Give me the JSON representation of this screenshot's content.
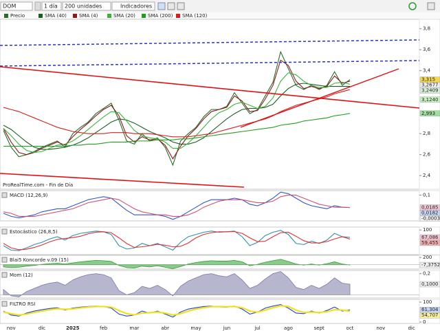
{
  "toolbar": {
    "symbol": "DOM",
    "period": "1 día",
    "units": "200 unidades",
    "indicators": "Indicadores"
  },
  "chart_data": [
    {
      "type": "line",
      "source": "ProRealTime.com - Fin de Día",
      "categories": [
        null,
        "nov",
        null,
        null,
        null,
        "dic",
        null,
        null,
        null,
        "2025",
        null,
        null,
        null,
        "feb",
        null,
        null,
        null,
        "mar",
        null,
        null,
        null,
        "abr",
        null,
        null,
        null,
        "may",
        null,
        null,
        null,
        "jun",
        null,
        null,
        null,
        "jul",
        null,
        null,
        null,
        "ago",
        null,
        null,
        null,
        "sept",
        null,
        null,
        null,
        "oct",
        null,
        null,
        null,
        "nov",
        null,
        null,
        null,
        "dic"
      ],
      "ylim": [
        2.27,
        3.89
      ],
      "yticks": [
        {
          "value": 3.8,
          "label": "3,8"
        },
        {
          "value": 3.6,
          "label": "3,6"
        },
        {
          "value": 3.4,
          "label": "3,4"
        },
        {
          "value": 2.8,
          "label": "2,8"
        },
        {
          "value": 2.6,
          "label": "2,6"
        },
        {
          "value": 2.4,
          "label": "2,4"
        }
      ],
      "series": [
        {
          "name": "Precio",
          "color": "#2a6a2a",
          "values": [
            2.83,
            2.67,
            2.58,
            2.6,
            2.63,
            2.67,
            2.7,
            2.73,
            2.67,
            2.8,
            2.86,
            2.91,
            2.99,
            3.04,
            3.09,
            2.93,
            2.73,
            2.7,
            2.8,
            2.73,
            2.76,
            2.67,
            2.5,
            2.73,
            2.8,
            2.86,
            2.96,
            3.03,
            3.03,
            3.06,
            3.19,
            3.09,
            2.99,
            3.03,
            3.16,
            3.29,
            3.58,
            3.42,
            3.26,
            3.22,
            3.26,
            3.22,
            3.26,
            3.39,
            3.26,
            3.315,
            null,
            null,
            null,
            null,
            null,
            null,
            null,
            null
          ]
        },
        {
          "name": "SMA (40)",
          "color": "#1b5e20",
          "values": [
            2.88,
            2.84,
            2.78,
            2.72,
            2.67,
            2.65,
            2.65,
            2.66,
            2.67,
            2.69,
            2.72,
            2.76,
            2.81,
            2.86,
            2.91,
            2.94,
            2.93,
            2.9,
            2.86,
            2.82,
            2.79,
            2.76,
            2.72,
            2.7,
            2.7,
            2.72,
            2.76,
            2.82,
            2.88,
            2.94,
            2.99,
            3.03,
            3.04,
            3.04,
            3.05,
            3.08,
            3.16,
            3.23,
            3.27,
            3.28,
            3.27,
            3.26,
            3.25,
            3.25,
            3.25,
            3.25,
            null,
            null,
            null,
            null,
            null,
            null,
            null,
            null
          ]
        },
        {
          "name": "SMA (4)",
          "color": "#8b1a1a",
          "values": [
            2.85,
            2.72,
            2.62,
            2.6,
            2.62,
            2.66,
            2.69,
            2.72,
            2.69,
            2.77,
            2.84,
            2.9,
            2.97,
            3.03,
            3.07,
            2.97,
            2.78,
            2.72,
            2.77,
            2.74,
            2.75,
            2.69,
            2.56,
            2.68,
            2.78,
            2.85,
            2.94,
            3.01,
            3.03,
            3.05,
            3.16,
            3.11,
            3.01,
            3.02,
            3.13,
            3.26,
            3.5,
            3.45,
            3.3,
            3.23,
            3.25,
            3.23,
            3.25,
            3.35,
            3.28,
            3.3,
            null,
            null,
            null,
            null,
            null,
            null,
            null,
            null
          ]
        },
        {
          "name": "SMA (20)",
          "color": "#3bb33b",
          "values": [
            2.85,
            2.78,
            2.7,
            2.64,
            2.62,
            2.63,
            2.66,
            2.69,
            2.7,
            2.73,
            2.78,
            2.84,
            2.9,
            2.96,
            3.01,
            3,
            2.92,
            2.83,
            2.78,
            2.76,
            2.75,
            2.72,
            2.66,
            2.66,
            2.71,
            2.78,
            2.86,
            2.94,
            3,
            3.03,
            3.08,
            3.1,
            3.07,
            3.04,
            3.06,
            3.14,
            3.3,
            3.38,
            3.36,
            3.3,
            3.26,
            3.24,
            3.24,
            3.28,
            3.29,
            3.27,
            null,
            null,
            null,
            null,
            null,
            null,
            null,
            null
          ]
        },
        {
          "name": "SMA (200)",
          "color": "#1e9e1e",
          "values": [
            2.68,
            2.68,
            2.68,
            2.68,
            2.68,
            2.68,
            2.68,
            2.68,
            2.68,
            2.69,
            2.69,
            2.7,
            2.7,
            2.71,
            2.72,
            2.72,
            2.72,
            2.73,
            2.73,
            2.73,
            2.74,
            2.74,
            2.74,
            2.75,
            2.75,
            2.76,
            2.77,
            2.78,
            2.79,
            2.8,
            2.81,
            2.82,
            2.83,
            2.84,
            2.85,
            2.86,
            2.88,
            2.89,
            2.9,
            2.92,
            2.93,
            2.94,
            2.95,
            2.97,
            2.98,
            2.993,
            null,
            null,
            null,
            null,
            null,
            null,
            null,
            null
          ]
        },
        {
          "name": "SMA (120)",
          "color": "#d42020",
          "values": [
            3.05,
            3.03,
            3.01,
            2.98,
            2.95,
            2.92,
            2.89,
            2.86,
            2.84,
            2.82,
            2.81,
            2.8,
            2.8,
            2.8,
            2.81,
            2.81,
            2.81,
            2.8,
            2.8,
            2.8,
            2.79,
            2.78,
            2.77,
            2.77,
            2.77,
            2.78,
            2.79,
            2.8,
            2.82,
            2.84,
            2.86,
            2.88,
            2.9,
            2.92,
            2.94,
            2.97,
            3.01,
            3.04,
            3.07,
            3.09,
            3.11,
            3.13,
            3.15,
            3.18,
            3.2,
            3.22,
            null,
            null,
            null,
            null,
            null,
            null,
            null,
            null
          ]
        }
      ],
      "markers": [
        {
          "value": 3.315,
          "label": "3,315",
          "color": "#f2d64b"
        },
        {
          "value": 3.2677,
          "label": "3,2677",
          "color": "#eeeeee"
        },
        {
          "value": 3.2409,
          "label": "3,2409",
          "color": "#d8f0d8"
        },
        {
          "value": 3.124,
          "label": "3,1240",
          "color": "#c8f0c0"
        },
        {
          "value": 2.993,
          "label": "2,993",
          "color": "#9fe09f"
        }
      ]
    },
    {
      "type": "line",
      "title": "MACD (12,26,9)",
      "ylim": [
        -0.07,
        0.13
      ],
      "yticks": [
        {
          "value": 0.1,
          "label": "0,1"
        }
      ],
      "series": [
        {
          "color": "#3355cc",
          "values": [
            -0.02,
            -0.04,
            -0.05,
            -0.04,
            -0.03,
            -0.01,
            0,
            0.01,
            0.01,
            0.03,
            0.05,
            0.07,
            0.08,
            0.09,
            0.08,
            0.04,
            0,
            -0.03,
            -0.03,
            -0.03,
            -0.03,
            -0.04,
            -0.06,
            -0.04,
            -0.01,
            0.02,
            0.05,
            0.07,
            0.07,
            0.07,
            0.08,
            0.07,
            0.04,
            0.03,
            0.05,
            0.08,
            0.12,
            0.11,
            0.08,
            0.05,
            0.03,
            0.02,
            0.01,
            0.03,
            0.02,
            0.0185,
            null,
            null,
            null,
            null,
            null,
            null,
            null,
            null
          ]
        },
        {
          "color": "#d05070",
          "values": [
            -0.01,
            -0.02,
            -0.04,
            -0.04,
            -0.04,
            -0.03,
            -0.02,
            -0.01,
            0,
            0.01,
            0.03,
            0.05,
            0.06,
            0.07,
            0.08,
            0.07,
            0.04,
            0.01,
            -0.01,
            -0.02,
            -0.03,
            -0.03,
            -0.04,
            -0.04,
            -0.03,
            -0.01,
            0.02,
            0.04,
            0.06,
            0.07,
            0.07,
            0.07,
            0.06,
            0.05,
            0.05,
            0.06,
            0.09,
            0.1,
            0.1,
            0.08,
            0.06,
            0.04,
            0.03,
            0.02,
            0.02,
            0.0182,
            null,
            null,
            null,
            null,
            null,
            null,
            null,
            null
          ]
        }
      ],
      "markers": [
        {
          "value": 0.0185,
          "label": "0,0185",
          "color": "#f4c6d4"
        },
        {
          "value": 0.0182,
          "label": "0,0182",
          "color": "#c8d4f4"
        },
        {
          "value": -0.0003,
          "label": "-0,0003",
          "color": "#eeeeee"
        }
      ]
    },
    {
      "type": "line",
      "title": "Estocástico (26,8,5)",
      "ylim": [
        -10,
        113
      ],
      "yticks": [
        100
      ],
      "series": [
        {
          "color": "#2c8fb0",
          "values": [
            30,
            10,
            8,
            20,
            35,
            45,
            60,
            70,
            55,
            75,
            85,
            90,
            95,
            92,
            80,
            30,
            15,
            20,
            40,
            30,
            40,
            25,
            10,
            45,
            70,
            80,
            90,
            95,
            90,
            92,
            95,
            70,
            30,
            45,
            75,
            90,
            98,
            80,
            40,
            35,
            50,
            40,
            55,
            85,
            70,
            67.086,
            null,
            null,
            null,
            null,
            null,
            null,
            null,
            null
          ]
        },
        {
          "color": "#e03030",
          "values": [
            40,
            20,
            12,
            14,
            22,
            33,
            47,
            58,
            62,
            66,
            72,
            83,
            90,
            92,
            88,
            65,
            40,
            22,
            25,
            30,
            36,
            32,
            25,
            27,
            42,
            65,
            80,
            88,
            92,
            92,
            93,
            85,
            65,
            48,
            50,
            70,
            88,
            90,
            72,
            52,
            42,
            42,
            48,
            60,
            70,
            59.455,
            null,
            null,
            null,
            null,
            null,
            null,
            null,
            null
          ]
        }
      ],
      "markers": [
        {
          "value": 67.086,
          "label": "67,086",
          "color": "#f4c6d4"
        },
        {
          "value": 59.455,
          "label": "59,455",
          "color": "#f4b0b0"
        }
      ]
    },
    {
      "type": "area",
      "title": "Blai5 Koncorde v.09 (15)",
      "ylim": [
        -120,
        260
      ],
      "yticks": [
        200
      ],
      "series": [
        {
          "color": "#2ca02c",
          "values": [
            -60,
            -80,
            -70,
            -40,
            -20,
            10,
            30,
            40,
            20,
            50,
            80,
            100,
            120,
            110,
            90,
            -20,
            -80,
            -90,
            -40,
            -60,
            -30,
            -70,
            -110,
            -50,
            20,
            60,
            90,
            110,
            100,
            100,
            120,
            80,
            -30,
            10,
            70,
            110,
            150,
            90,
            20,
            -10,
            20,
            -10,
            30,
            80,
            20,
            -7.3752,
            null,
            null,
            null,
            null,
            null,
            null,
            null,
            null
          ]
        }
      ],
      "markers": [
        {
          "value": -7.3752,
          "label": "-7,3752",
          "color": "#eeeeee"
        }
      ]
    },
    {
      "type": "area",
      "title": "Mom (12)",
      "ylim": [
        -0.03,
        0.23
      ],
      "yticks": [
        {
          "value": 0.2,
          "label": "0,2"
        }
      ],
      "series": [
        {
          "color": "#7a7aa8",
          "values": [
            0.05,
            -0.01,
            -0.02,
            0.03,
            0.06,
            0.09,
            0.11,
            0.12,
            0.09,
            0.14,
            0.17,
            0.19,
            0.2,
            0.19,
            0.16,
            0.04,
            0,
            0.02,
            0.08,
            0.06,
            0.09,
            0.05,
            -0.01,
            0.08,
            0.13,
            0.16,
            0.19,
            0.2,
            0.18,
            0.17,
            0.2,
            0.14,
            0.06,
            0.09,
            0.15,
            0.2,
            0.22,
            0.16,
            0.07,
            0.05,
            0.09,
            0.06,
            0.1,
            0.16,
            0.11,
            0.1,
            null,
            null,
            null,
            null,
            null,
            null,
            null,
            null
          ]
        }
      ],
      "markers": [
        {
          "value": 0.1,
          "label": "0,1000",
          "color": "#eeeeee"
        }
      ]
    },
    {
      "type": "line",
      "title": "FILTRO RSI",
      "ylim": [
        -7,
        114
      ],
      "yticks": [
        100,
        0
      ],
      "series": [
        {
          "color": "#2040d0",
          "values": [
            55,
            35,
            30,
            45,
            55,
            62,
            68,
            72,
            60,
            70,
            75,
            78,
            80,
            78,
            70,
            40,
            30,
            35,
            55,
            45,
            55,
            40,
            25,
            50,
            65,
            72,
            78,
            80,
            76,
            75,
            80,
            65,
            40,
            50,
            70,
            80,
            88,
            70,
            45,
            42,
            55,
            45,
            58,
            75,
            55,
            61.304,
            null,
            null,
            null,
            null,
            null,
            null,
            null,
            null
          ]
        },
        {
          "color": "#f0e020",
          "values": [
            50,
            42,
            35,
            40,
            48,
            55,
            62,
            67,
            64,
            66,
            71,
            75,
            78,
            78,
            75,
            58,
            42,
            36,
            45,
            47,
            50,
            45,
            35,
            42,
            55,
            65,
            72,
            77,
            78,
            77,
            78,
            72,
            55,
            50,
            60,
            72,
            82,
            78,
            60,
            48,
            50,
            48,
            52,
            62,
            60,
            54.707,
            null,
            null,
            null,
            null,
            null,
            null,
            null,
            null
          ]
        }
      ],
      "markers": [
        {
          "value": 61.304,
          "label": "61,304",
          "color": "#c8d4f4"
        },
        {
          "value": 54.707,
          "label": "54,707",
          "color": "#f8f0a0"
        }
      ]
    }
  ]
}
